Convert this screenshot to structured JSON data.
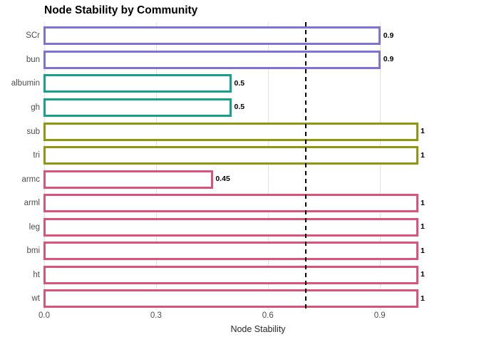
{
  "chart_data": {
    "type": "bar",
    "orientation": "horizontal",
    "title": "Node Stability by Community",
    "xlabel": "Node Stability",
    "categories": [
      "SCr",
      "bun",
      "albumin",
      "gh",
      "sub",
      "tri",
      "armc",
      "arml",
      "leg",
      "bmi",
      "ht",
      "wt"
    ],
    "values": [
      0.9,
      0.9,
      0.5,
      0.5,
      1,
      1,
      0.45,
      1,
      1,
      1,
      1,
      1
    ],
    "value_labels": [
      "0.9",
      "0.9",
      "0.5",
      "0.5",
      "1",
      "1",
      "0.45",
      "1",
      "1",
      "1",
      "1",
      "1"
    ],
    "bar_colors": [
      "#7e72d9",
      "#7e72d9",
      "#17a08c",
      "#17a08c",
      "#8f970f",
      "#8f970f",
      "#db5378",
      "#db5378",
      "#db5378",
      "#db5378",
      "#db5378",
      "#db5378"
    ],
    "bar_fill": "#ffffff",
    "community_colors": {
      "purple": "#7e72d9",
      "teal": "#17a08c",
      "olive": "#8f970f",
      "pink": "#db5378"
    },
    "x_ticks": [
      "0.0",
      "0.3",
      "0.6",
      "0.9"
    ],
    "x_tick_values": [
      0.0,
      0.3,
      0.6,
      0.9
    ],
    "xlim": [
      0,
      1.05
    ],
    "reference_line": 0.7,
    "reference_line_style": "dashed",
    "reference_line_color": "#000000",
    "grid": true,
    "legend": false
  }
}
